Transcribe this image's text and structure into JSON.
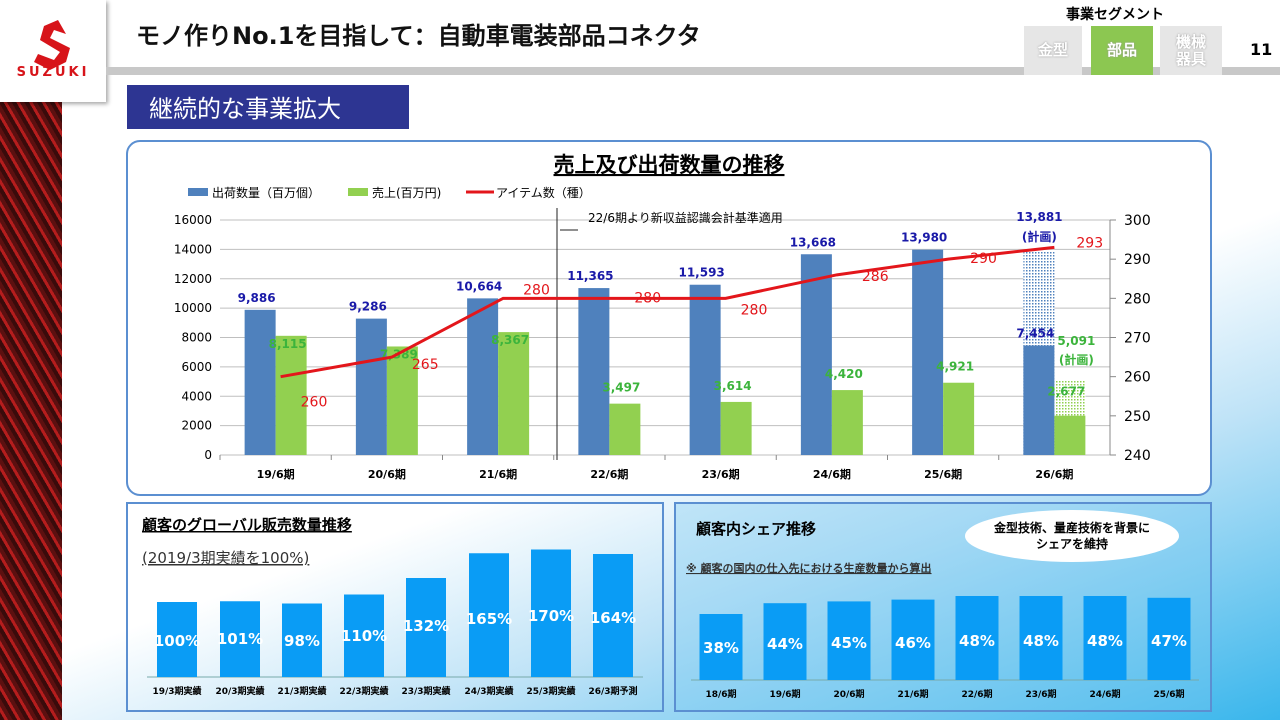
{
  "header": {
    "title": "モノ作りNo.1を目指して：自動車電装部品コネクタ",
    "subtitle": "継続的な事業拡大",
    "logo_text": "SUZUKI",
    "segment_label": "事業セグメント",
    "segments": [
      "金型",
      "部品",
      "機械器具"
    ],
    "active_segment": "部品",
    "page_number": "11"
  },
  "colors": {
    "shipments": "#4f81bd",
    "sales": "#92d050",
    "items": "#e3161b",
    "segment_active": "#8cc751",
    "segment_inactive": "#e6e6e6",
    "bottom_bars": "#0a9cf5"
  },
  "chart_data": [
    {
      "type": "bar+line",
      "title": "売上及び出荷数量の推移",
      "categories": [
        "19/6期",
        "20/6期",
        "21/6期",
        "22/6期",
        "23/6期",
        "24/6期",
        "25/6期",
        "26/6期"
      ],
      "legend": [
        "出荷数量（百万個）",
        "売上(百万円)",
        "アイテム数（種）"
      ],
      "legend_placement": "top-left",
      "series": [
        {
          "name": "出荷数量（百万個）",
          "type": "bar",
          "axis": "left",
          "values": [
            9886,
            9286,
            10664,
            11365,
            11593,
            13668,
            13980,
            7454
          ],
          "labels": [
            "9,886",
            "9,286",
            "10,664",
            "11,365",
            "11,593",
            "13,668",
            "13,980",
            "7,454"
          ]
        },
        {
          "name": "売上(百万円)",
          "type": "bar",
          "axis": "left",
          "values": [
            8115,
            7389,
            8367,
            3497,
            3614,
            4420,
            4921,
            2677
          ],
          "labels": [
            "8,115",
            "7,389",
            "8,367",
            "3,497",
            "3,614",
            "4,420",
            "4,921",
            "2,677"
          ]
        },
        {
          "name": "アイテム数（種）",
          "type": "line",
          "axis": "right",
          "values": [
            260,
            265,
            280,
            280,
            280,
            286,
            290,
            293
          ],
          "labels": [
            "260",
            "265",
            "280",
            "280",
            "280",
            "286",
            "290",
            "293"
          ]
        }
      ],
      "plan": {
        "shipments": 13881,
        "shipments_label": "13,881",
        "sales": 5091,
        "sales_label": "5,091",
        "note": "(計画)"
      },
      "annotation": "22/6期より新収益認識会計基準適用",
      "left_axis": {
        "range": [
          0,
          16000
        ],
        "ticks": [
          "0",
          "2000",
          "4000",
          "6000",
          "8000",
          "10000",
          "12000",
          "14000",
          "16000"
        ]
      },
      "right_axis": {
        "range": [
          240,
          300
        ],
        "ticks": [
          "240",
          "250",
          "260",
          "270",
          "280",
          "290",
          "300"
        ]
      },
      "grid": true
    },
    {
      "type": "bar",
      "title": "顧客のグローバル販売数量推移",
      "subtitle": "(2019/3期実績を100%)",
      "categories": [
        "19/3期実績",
        "20/3期実績",
        "21/3期実績",
        "22/3期実績",
        "23/3期実績",
        "24/3期実績",
        "25/3期実績",
        "26/3期予測"
      ],
      "values": [
        100,
        101,
        98,
        110,
        132,
        165,
        170,
        164
      ],
      "labels": [
        "100%",
        "101%",
        "98%",
        "110%",
        "132%",
        "165%",
        "170%",
        "164%"
      ]
    },
    {
      "type": "bar",
      "title": "顧客内シェア推移",
      "note": "※ 顧客の国内の仕入先における生産数量から算出",
      "callout": [
        "金型技術、量産技術を背景に",
        "シェアを維持"
      ],
      "categories": [
        "18/6期",
        "19/6期",
        "20/6期",
        "21/6期",
        "22/6期",
        "23/6期",
        "24/6期",
        "25/6期"
      ],
      "values": [
        38,
        44,
        45,
        46,
        48,
        48,
        48,
        47
      ],
      "labels": [
        "38%",
        "44%",
        "45%",
        "46%",
        "48%",
        "48%",
        "48%",
        "47%"
      ]
    }
  ]
}
